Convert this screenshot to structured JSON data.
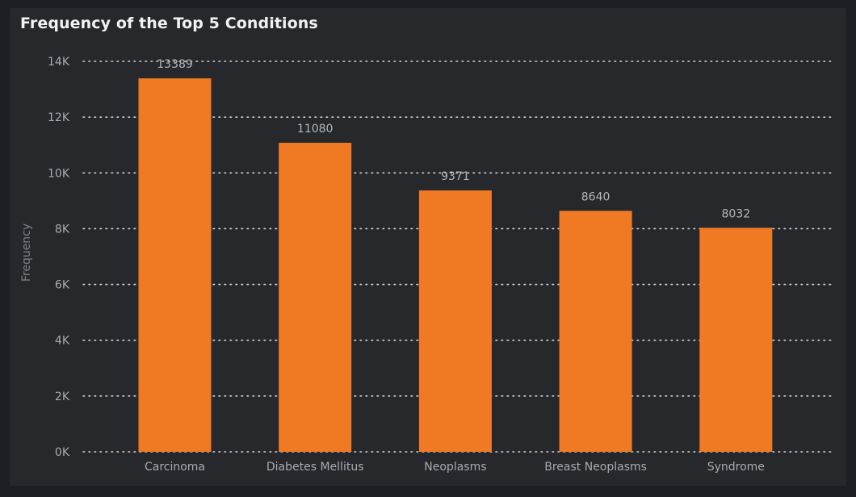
{
  "chart_data": {
    "type": "bar",
    "title": "Frequency of the Top 5 Conditions",
    "xlabel": "",
    "ylabel": "Frequency",
    "categories": [
      "Carcinoma",
      "Diabetes Mellitus",
      "Neoplasms",
      "Breast Neoplasms",
      "Syndrome"
    ],
    "values": [
      13389,
      11080,
      9371,
      8640,
      8032
    ],
    "data_labels": [
      "13389",
      "11080",
      "9371",
      "8640",
      "8032"
    ],
    "ylim": [
      0,
      14000
    ],
    "yticks": [
      0,
      2000,
      4000,
      6000,
      8000,
      10000,
      12000,
      14000
    ],
    "ytick_labels": [
      "0K",
      "2K",
      "4K",
      "6K",
      "8K",
      "10K",
      "12K",
      "14K"
    ],
    "grid": true,
    "legend": "none"
  },
  "colors": {
    "bar": "#f07a24",
    "background": "#26282c",
    "grid": "#cfd2d6",
    "tick_text": "#a8abb0",
    "data_label_text": "#b4b7bb",
    "ylabel_text": "#7d8186"
  }
}
